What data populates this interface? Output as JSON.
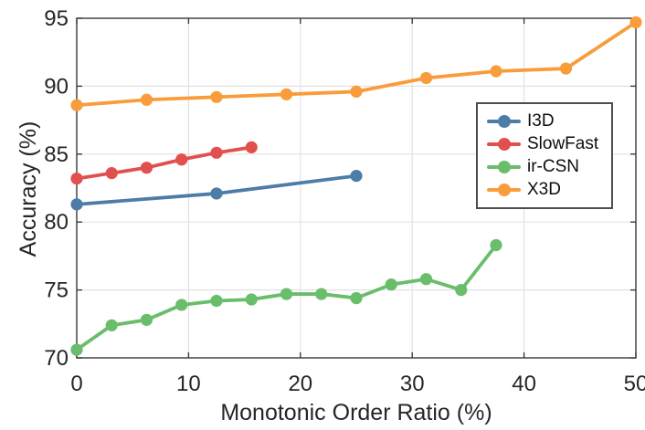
{
  "chart_data": {
    "type": "line",
    "title": "",
    "xlabel": "Monotonic Order Ratio (%)",
    "ylabel": "Accuracy (%)",
    "xlim": [
      0,
      50
    ],
    "ylim": [
      70,
      95
    ],
    "xticks": [
      0,
      10,
      20,
      30,
      40,
      50
    ],
    "yticks": [
      70,
      75,
      80,
      85,
      90,
      95
    ],
    "grid": true,
    "legend_position": "right-middle-inside",
    "series": [
      {
        "name": "I3D",
        "color": "#4d7da6",
        "x": [
          0,
          12.5,
          25
        ],
        "y": [
          81.3,
          82.1,
          83.4
        ]
      },
      {
        "name": "SlowFast",
        "color": "#e1504e",
        "x": [
          0,
          3.125,
          6.25,
          9.375,
          12.5,
          15.625
        ],
        "y": [
          83.2,
          83.6,
          84.0,
          84.6,
          85.1,
          85.5
        ]
      },
      {
        "name": "ir-CSN",
        "color": "#69bd6b",
        "x": [
          0,
          3.125,
          6.25,
          9.375,
          12.5,
          15.625,
          18.75,
          21.875,
          25,
          28.125,
          31.25,
          34.375,
          37.5
        ],
        "y": [
          70.6,
          72.4,
          72.8,
          73.9,
          74.2,
          74.3,
          74.7,
          74.7,
          74.4,
          75.4,
          75.8,
          75.0,
          78.3
        ]
      },
      {
        "name": "X3D",
        "color": "#f99c3b",
        "x": [
          0,
          6.25,
          12.5,
          18.75,
          25,
          31.25,
          37.5,
          43.75,
          50
        ],
        "y": [
          88.6,
          89.0,
          89.2,
          89.4,
          89.6,
          90.6,
          91.1,
          91.3,
          94.7
        ]
      }
    ]
  },
  "style_colors": {
    "grid": "#e2e2e2",
    "axis_box": "#3c3c3c",
    "tick_text": "#262626",
    "background": "#ffffff"
  }
}
